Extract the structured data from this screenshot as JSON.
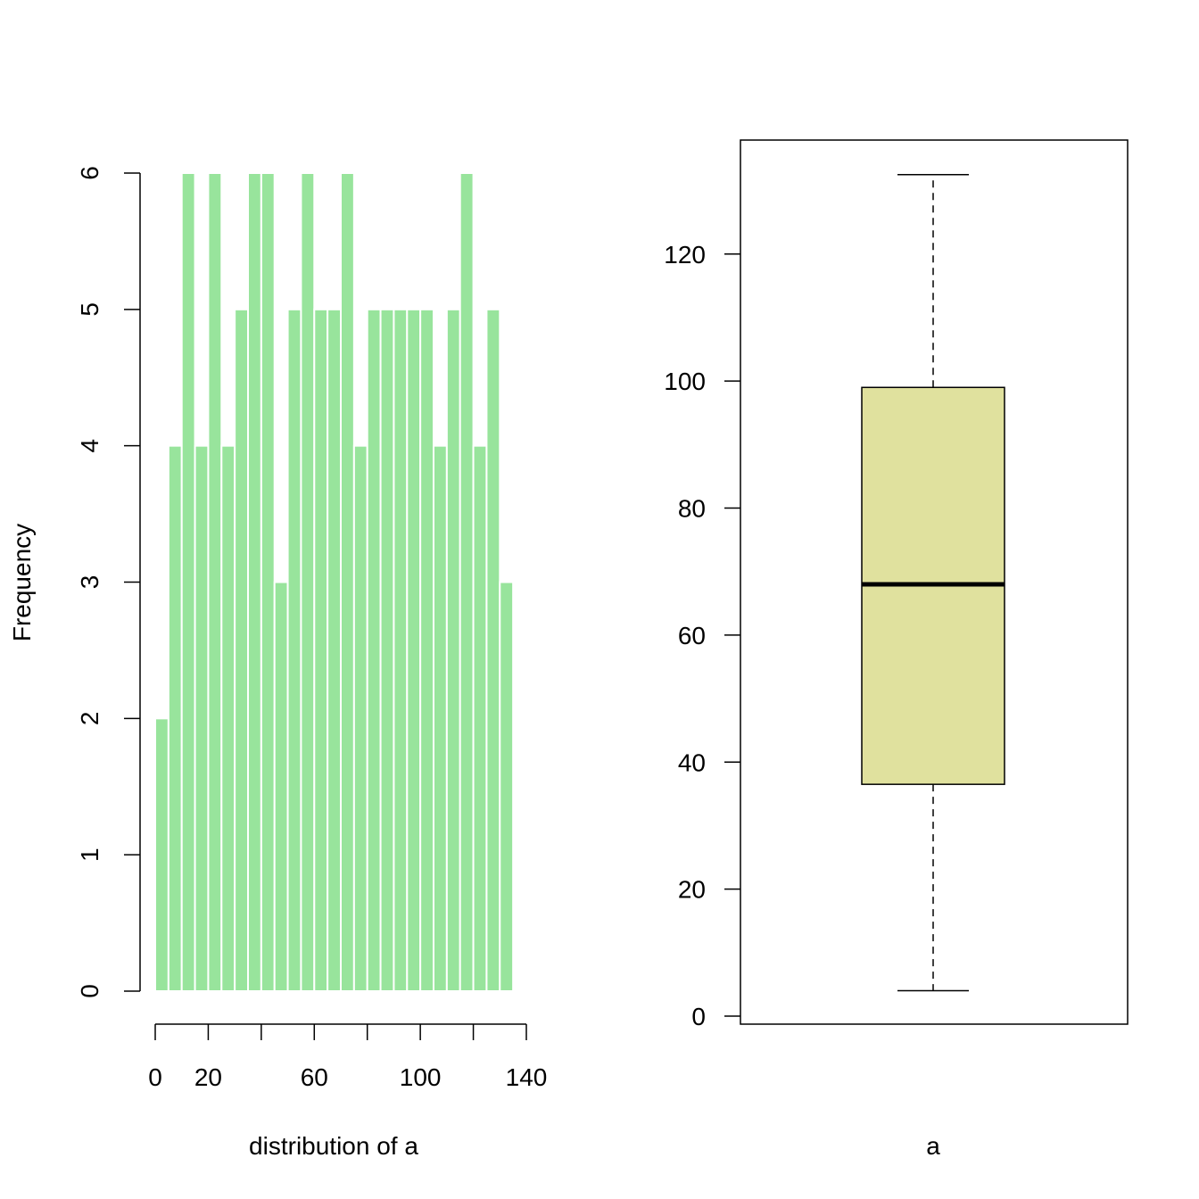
{
  "chart_data": [
    {
      "type": "bar",
      "subtype": "histogram",
      "title": "",
      "xlabel": "distribution of a",
      "ylabel": "Frequency",
      "bin_width": 5,
      "bin_start": 0,
      "values": [
        2,
        4,
        6,
        4,
        6,
        4,
        5,
        6,
        6,
        3,
        5,
        6,
        5,
        5,
        6,
        4,
        5,
        5,
        5,
        5,
        5,
        4,
        5,
        6,
        4,
        5,
        3
      ],
      "xlim": [
        0,
        140
      ],
      "ylim": [
        0,
        6
      ],
      "x_ticks": [
        0,
        20,
        40,
        60,
        80,
        100,
        120,
        140
      ],
      "x_tick_labels": [
        "0",
        "20",
        "",
        "60",
        "",
        "100",
        "",
        "140"
      ],
      "y_ticks": [
        0,
        1,
        2,
        3,
        4,
        5,
        6
      ],
      "y_tick_labels": [
        "0",
        "1",
        "2",
        "3",
        "4",
        "5",
        "6"
      ],
      "bar_color": "#98e49c",
      "grid": false
    },
    {
      "type": "box",
      "title": "",
      "xlabel": "a",
      "ylabel": "",
      "whisker_low": 4,
      "q1": 36.5,
      "median": 68,
      "q3": 99,
      "whisker_high": 132.5,
      "ylim": [
        0,
        135
      ],
      "y_ticks": [
        0,
        20,
        40,
        60,
        80,
        100,
        120
      ],
      "y_tick_labels": [
        "0",
        "20",
        "40",
        "60",
        "80",
        "100",
        "120"
      ],
      "box_color": "#e0e19e",
      "grid": false
    }
  ]
}
